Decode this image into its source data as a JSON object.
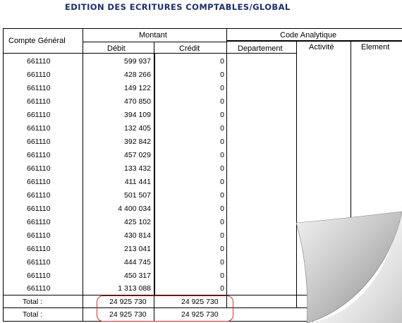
{
  "report": {
    "title": "EDITION DES ECRITURES COMPTABLES/GLOBAL"
  },
  "headers": {
    "compte": "Compte  Général",
    "montant": "Montant",
    "debit": "Débit",
    "credit": "Crédit",
    "code_analytique": "Code   Analytique",
    "departement": "Departement",
    "activite": "Activité",
    "element": "Element"
  },
  "rows": [
    {
      "compte": "661110",
      "debit": "599 937",
      "credit": "0"
    },
    {
      "compte": "661110",
      "debit": "428 266",
      "credit": "0"
    },
    {
      "compte": "661110",
      "debit": "149 122",
      "credit": "0"
    },
    {
      "compte": "661110",
      "debit": "470 850",
      "credit": "0"
    },
    {
      "compte": "661110",
      "debit": "394 109",
      "credit": "0"
    },
    {
      "compte": "661110",
      "debit": "132 405",
      "credit": "0"
    },
    {
      "compte": "661110",
      "debit": "392 842",
      "credit": "0"
    },
    {
      "compte": "661110",
      "debit": "457 029",
      "credit": "0"
    },
    {
      "compte": "661110",
      "debit": "133 432",
      "credit": "0"
    },
    {
      "compte": "661110",
      "debit": "411 441",
      "credit": "0"
    },
    {
      "compte": "661110",
      "debit": "501 507",
      "credit": "0"
    },
    {
      "compte": "661110",
      "debit": "4 400 034",
      "credit": "0"
    },
    {
      "compte": "661110",
      "debit": "425 102",
      "credit": "0"
    },
    {
      "compte": "661110",
      "debit": "430 814",
      "credit": "0"
    },
    {
      "compte": "661110",
      "debit": "213 041",
      "credit": "0"
    },
    {
      "compte": "661110",
      "debit": "444 745",
      "credit": "0"
    },
    {
      "compte": "661110",
      "debit": "450 317",
      "credit": "0"
    },
    {
      "compte": "661110",
      "debit": "1 313 088",
      "credit": "0"
    }
  ],
  "totals": [
    {
      "label": "Total :",
      "debit": "24 925 730",
      "credit": "24 925 730"
    },
    {
      "label": "Total :",
      "debit": "24 925 730",
      "credit": "24 925 730"
    }
  ],
  "colors": {
    "title": "#1c2f6b",
    "highlight": "#d4302a",
    "page_curl": "#a9a9a9"
  }
}
